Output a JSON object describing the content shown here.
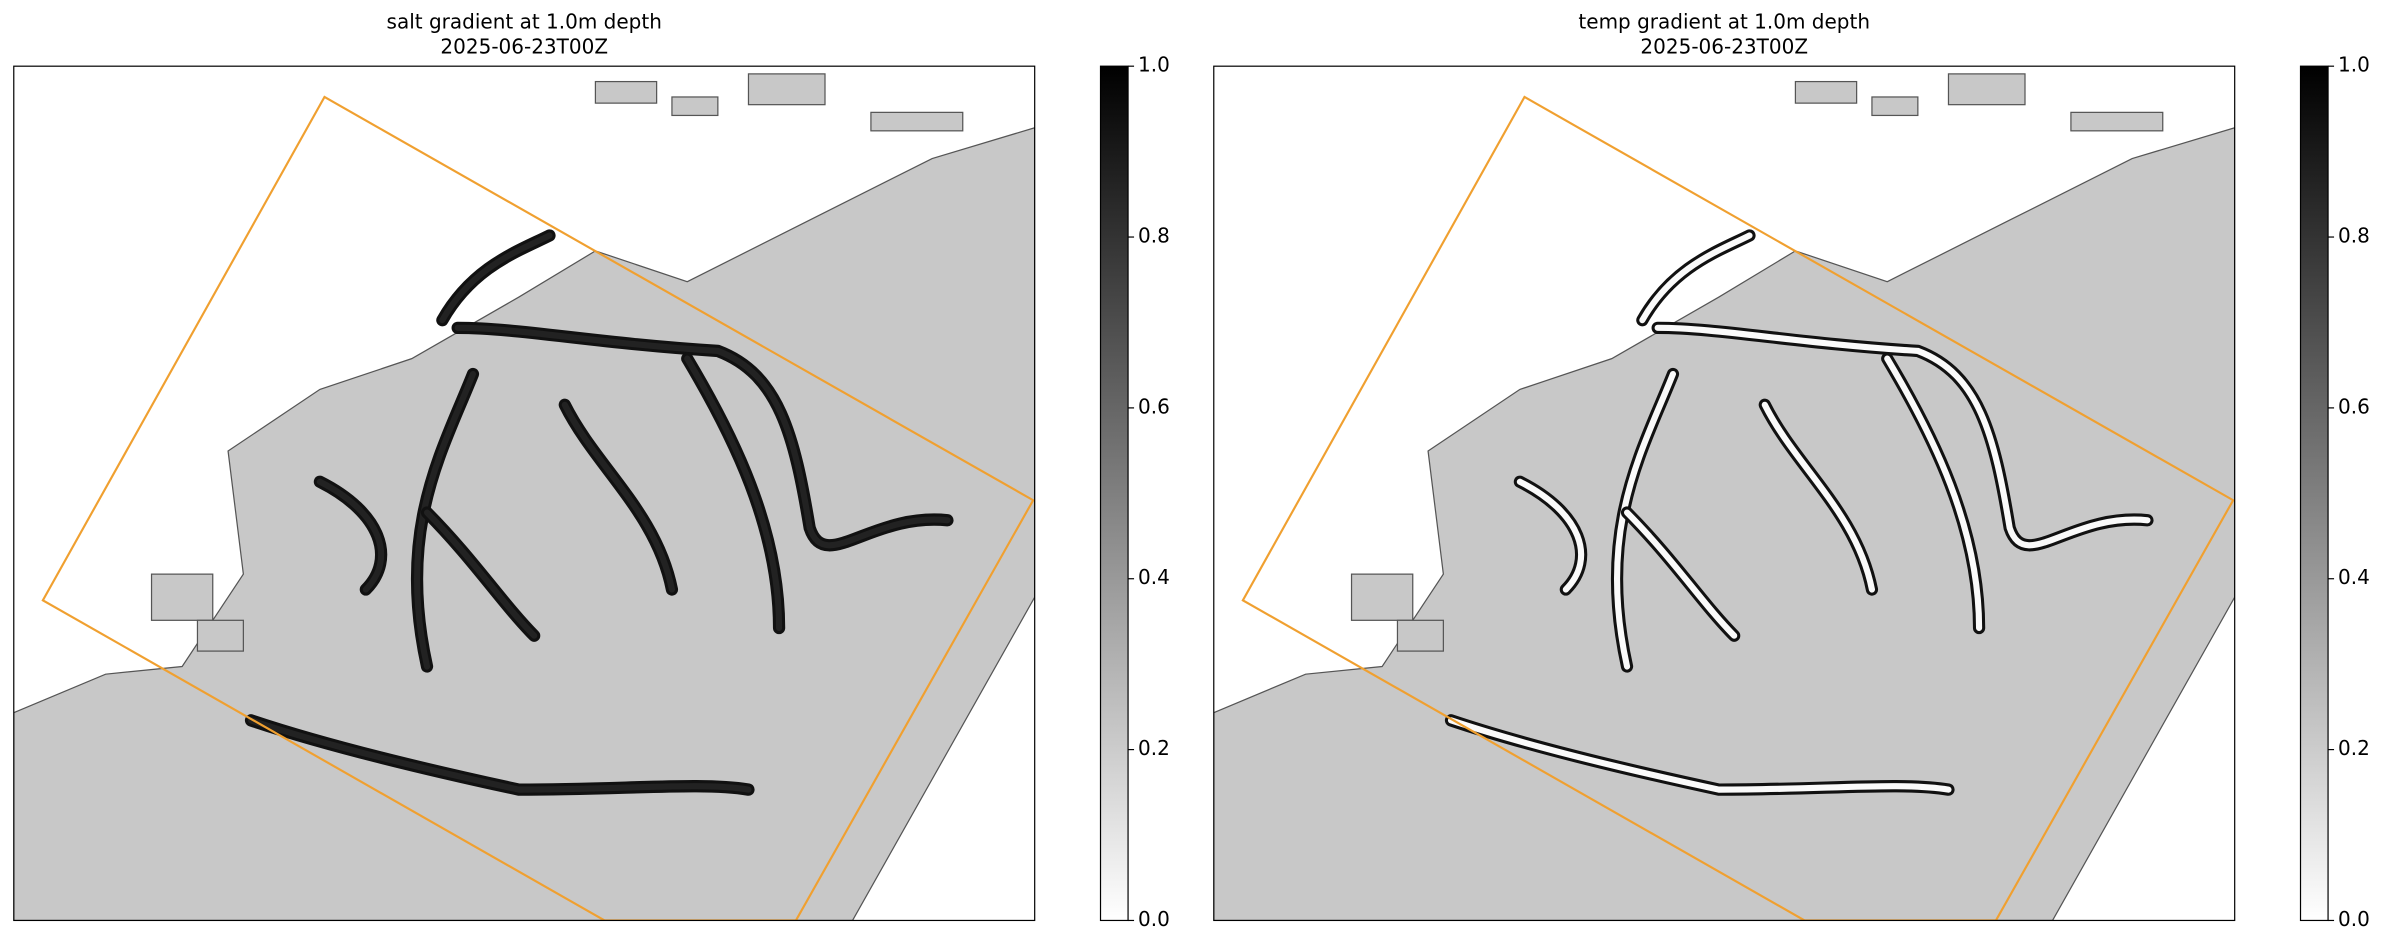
{
  "chart_data": [
    {
      "type": "heatmap",
      "title": "salt gradient at 1.0m depth",
      "subtitle": "2025-06-23T00Z",
      "clim": [
        0,
        1
      ],
      "cticks": [
        {
          "value": 0,
          "label": "0.0"
        },
        0.2,
        0.4,
        0.6,
        0.8,
        {
          "value": 1,
          "label": "1.0"
        }
      ]
    },
    {
      "type": "heatmap",
      "title": "temp gradient at 1.0m depth",
      "subtitle": "2025-06-23T00Z",
      "clim": [
        0,
        1
      ],
      "cticks": [
        {
          "value": 0,
          "label": "0.0"
        },
        0.2,
        0.4,
        0.6,
        0.8,
        {
          "value": 1,
          "label": "1.0"
        }
      ]
    }
  ]
}
